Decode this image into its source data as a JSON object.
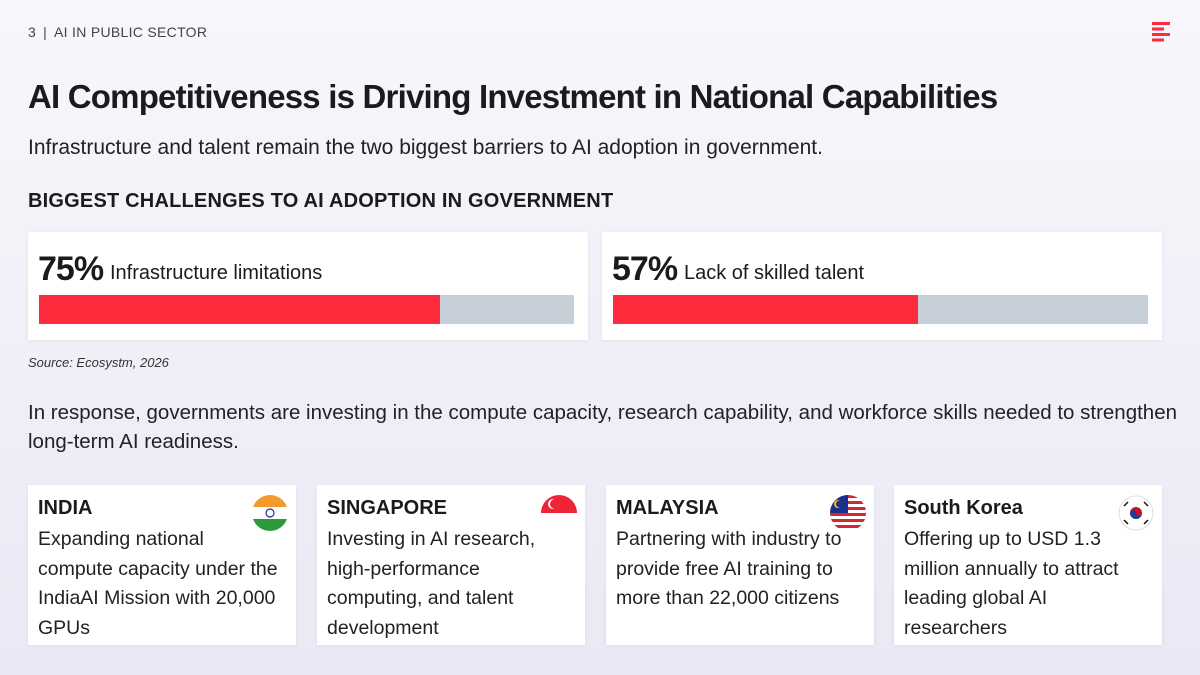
{
  "header": {
    "page_number": "3",
    "section": "AI IN PUBLIC SECTOR"
  },
  "title": "AI Competitiveness is Driving Investment in National Capabilities",
  "subtitle": "Infrastructure and talent remain the two biggest barriers to AI adoption in government.",
  "challenges": {
    "heading": "BIGGEST CHALLENGES TO AI ADOPTION IN GOVERNMENT",
    "items": [
      {
        "value": 75,
        "value_label": "75%",
        "label": "Infrastructure limitations"
      },
      {
        "value": 57,
        "value_label": "57%",
        "label": "Lack of skilled talent"
      }
    ],
    "source": "Source: Ecosystm, 2026"
  },
  "response": "In response, governments are investing in the compute capacity, research capability, and workforce skills needed to strengthen long-term AI readiness.",
  "countries": [
    {
      "name": "INDIA",
      "description": "Expanding national compute capacity under the IndiaAI Mission with 20,000 GPUs"
    },
    {
      "name": "SINGAPORE",
      "description": "Investing in AI research, high-performance computing, and talent development"
    },
    {
      "name": "MALAYSIA",
      "description": "Partnering with industry to provide free AI training to more than 22,000 citizens"
    },
    {
      "name": "South Korea",
      "description": "Offering up to USD 1.3 million annually to attract leading global AI researchers"
    }
  ]
}
